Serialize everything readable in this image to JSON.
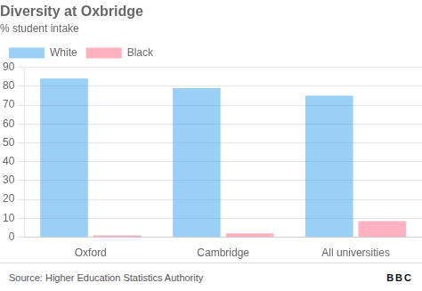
{
  "chart_data": {
    "type": "bar",
    "title": "Diversity at Oxbridge",
    "subtitle": "% student intake",
    "categories": [
      "Oxford",
      "Cambridge",
      "All universities"
    ],
    "series": [
      {
        "name": "White",
        "values": [
          84,
          79,
          75
        ]
      },
      {
        "name": "Black",
        "values": [
          1,
          2,
          8.5
        ]
      }
    ],
    "ylim": [
      0,
      90
    ],
    "yticks": [
      0,
      10,
      20,
      30,
      40,
      50,
      60,
      70,
      80,
      90
    ],
    "grid": true,
    "legend": "upper left",
    "annotations": [
      "Source: Higher Education Statistics Authority",
      "BBC"
    ]
  }
}
